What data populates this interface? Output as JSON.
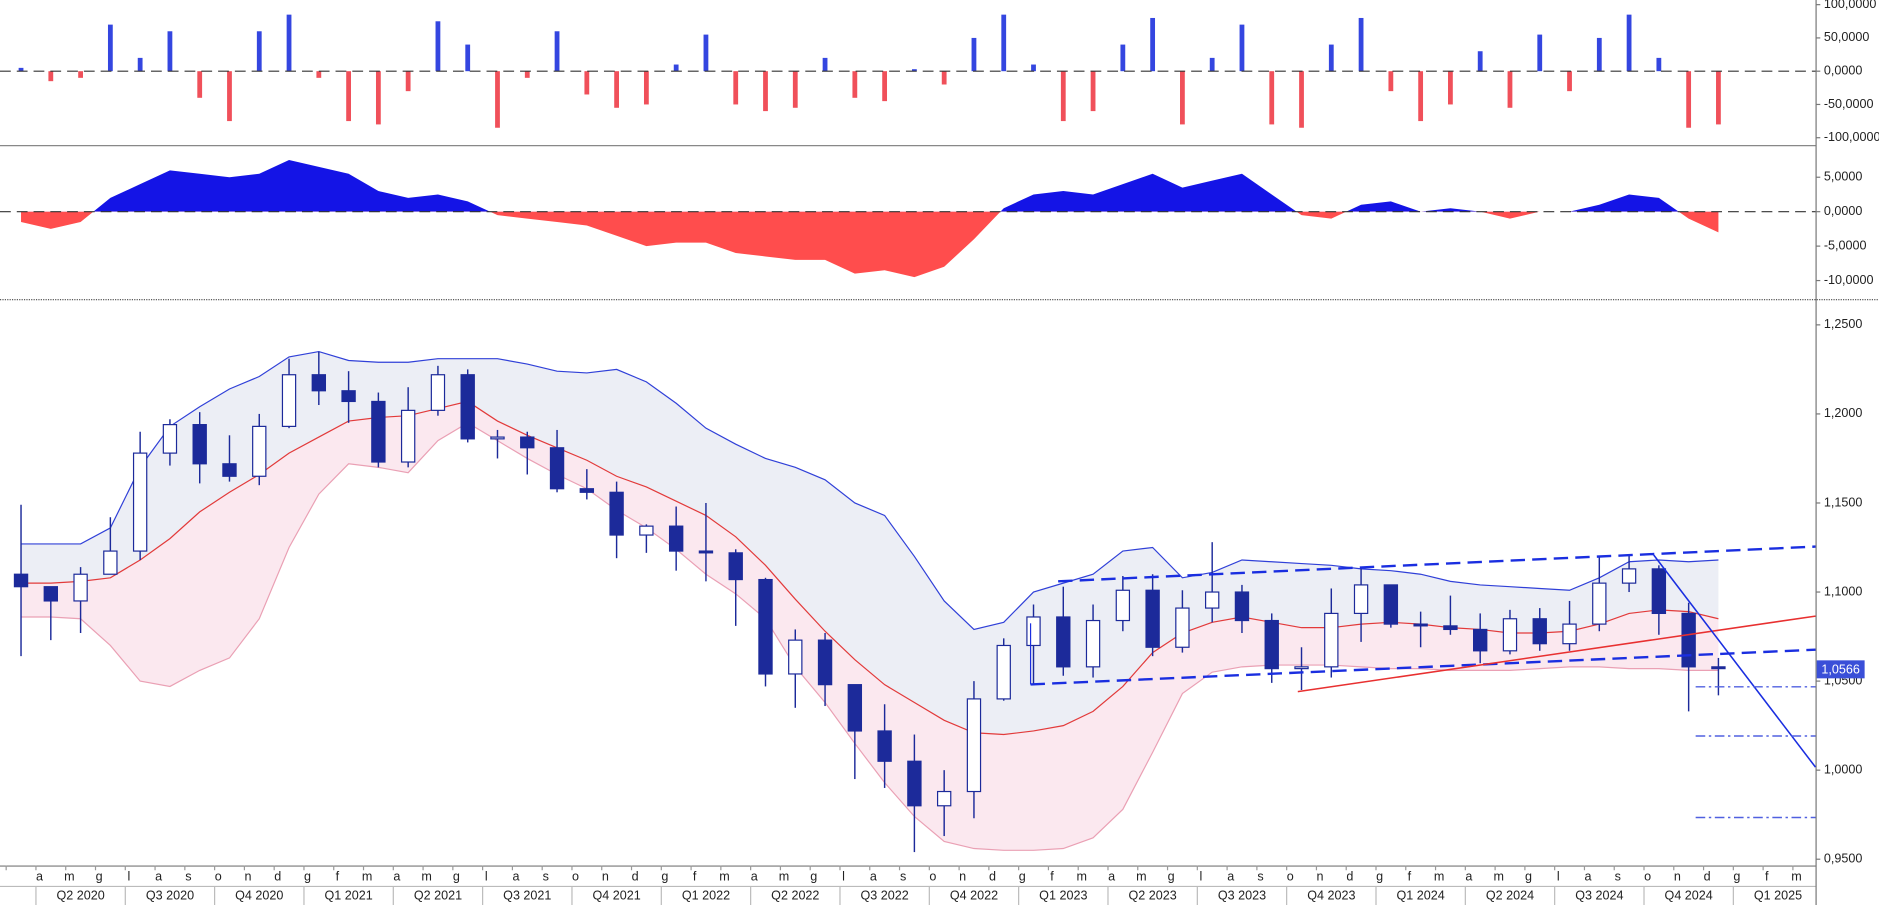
{
  "chart_data": [
    {
      "type": "histogram",
      "values": [
        5,
        -15,
        -10,
        70,
        20,
        60,
        -40,
        -75,
        60,
        85,
        -10,
        -75,
        -80,
        -30,
        75,
        40,
        -85,
        -10,
        60,
        -35,
        -55,
        -50,
        10,
        55,
        -50,
        -60,
        -55,
        20,
        -40,
        -45,
        3,
        -20,
        50,
        85,
        10,
        -75,
        -60,
        40,
        80,
        -80,
        20,
        70,
        -80,
        -85,
        40,
        80,
        -30,
        -75,
        -50,
        30,
        -55,
        55,
        -30,
        50,
        85,
        20,
        -85,
        -80,
        null,
        null,
        null
      ],
      "colors": {
        "positive": "#3446e0",
        "negative": "#f0505a"
      },
      "ylim": [
        -111,
        107
      ],
      "yticks": [
        {
          "value": 100,
          "label": "100,0000"
        },
        {
          "value": 50,
          "label": "50,0000"
        },
        {
          "value": 0,
          "label": "0,0000"
        },
        {
          "value": -50,
          "label": "-50,0000"
        },
        {
          "value": -100,
          "label": "-100,0000"
        }
      ],
      "zero_line": true
    },
    {
      "type": "area",
      "values": [
        -1.5,
        -2.5,
        -1.5,
        2,
        4,
        6,
        5.5,
        5,
        5.5,
        7.5,
        6.5,
        5.5,
        3,
        2,
        2.5,
        1.5,
        -0.5,
        -1,
        -1.5,
        -2,
        -3.5,
        -5,
        -4.5,
        -4.5,
        -6,
        -6.5,
        -7,
        -7,
        -9,
        -8.5,
        -9.5,
        -8,
        -4,
        0.5,
        2.5,
        3,
        2.5,
        4,
        5.5,
        3.5,
        4.5,
        5.5,
        2.5,
        -0.5,
        -1,
        1,
        1.5,
        0,
        0.5,
        0,
        -1,
        0,
        0,
        1,
        2.5,
        2,
        -1,
        -3,
        null,
        null,
        null
      ],
      "colors": {
        "positive": "#1414e6",
        "negative": "#ff4d4d"
      },
      "ylim": [
        -12.6,
        9.5
      ],
      "yticks": [
        {
          "value": 5,
          "label": "5,0000"
        },
        {
          "value": 0,
          "label": "0,0000"
        },
        {
          "value": -5,
          "label": "-5,0000"
        },
        {
          "value": -10,
          "label": "-10,0000"
        }
      ],
      "zero_line": true
    },
    {
      "type": "candlestick",
      "categories": [
        null,
        "a",
        "m",
        "g",
        "l",
        "a",
        "s",
        "o",
        "n",
        "d",
        "g",
        "f",
        "m",
        "a",
        "m",
        "g",
        "l",
        "a",
        "s",
        "o",
        "n",
        "d",
        "g",
        "f",
        "m",
        "a",
        "m",
        "g",
        "l",
        "a",
        "s",
        "o",
        "n",
        "d",
        "g",
        "f",
        "m",
        "a",
        "m",
        "g",
        "l",
        "a",
        "s",
        "o",
        "n",
        "d",
        "g",
        "f",
        "m",
        "a",
        "m",
        "g",
        "l",
        "a",
        "s",
        "o",
        "n",
        "d",
        "g",
        "f",
        "m"
      ],
      "quarters": [
        "Q2 2020",
        "Q3 2020",
        "Q4 2020",
        "Q1 2021",
        "Q2 2021",
        "Q3 2021",
        "Q4 2021",
        "Q1 2022",
        "Q2 2022",
        "Q3 2022",
        "Q4 2022",
        "Q1 2023",
        "Q2 2023",
        "Q3 2023",
        "Q4 2023",
        "Q1 2024",
        "Q2 2024",
        "Q3 2024",
        "Q4 2024",
        "Q1 2025"
      ],
      "open": [
        1.11,
        1.103,
        1.095,
        1.11,
        1.123,
        1.178,
        1.194,
        1.172,
        1.165,
        1.193,
        1.222,
        1.213,
        1.207,
        1.173,
        1.202,
        1.222,
        1.186,
        1.187,
        1.181,
        1.158,
        1.156,
        1.132,
        1.137,
        1.123,
        1.122,
        1.107,
        1.054,
        1.073,
        1.048,
        1.022,
        1.005,
        0.98,
        0.988,
        1.04,
        1.07,
        1.086,
        1.058,
        1.084,
        1.101,
        1.069,
        1.091,
        1.1,
        1.084,
        1.057,
        1.058,
        1.088,
        1.104,
        1.082,
        1.081,
        1.079,
        1.067,
        1.085,
        1.071,
        1.082,
        1.105,
        1.113,
        1.088,
        1.058,
        null,
        null,
        null
      ],
      "high": [
        1.149,
        1.102,
        1.114,
        1.142,
        1.19,
        1.197,
        1.201,
        1.188,
        1.2,
        1.231,
        1.235,
        1.224,
        1.212,
        1.215,
        1.227,
        1.225,
        1.191,
        1.19,
        1.191,
        1.169,
        1.162,
        1.138,
        1.148,
        1.15,
        1.124,
        1.108,
        1.079,
        1.077,
        1.048,
        1.037,
        1.02,
        1.0,
        1.05,
        1.074,
        1.093,
        1.103,
        1.093,
        1.109,
        1.11,
        1.101,
        1.128,
        1.104,
        1.088,
        1.069,
        1.102,
        1.114,
        1.104,
        1.089,
        1.098,
        1.088,
        1.09,
        1.091,
        1.095,
        1.12,
        1.121,
        1.115,
        1.094,
        1.063,
        null,
        null,
        null
      ],
      "low": [
        1.064,
        1.073,
        1.077,
        1.11,
        1.118,
        1.171,
        1.161,
        1.162,
        1.16,
        1.192,
        1.205,
        1.195,
        1.17,
        1.17,
        1.199,
        1.184,
        1.175,
        1.166,
        1.156,
        1.152,
        1.119,
        1.122,
        1.112,
        1.106,
        1.081,
        1.047,
        1.035,
        1.036,
        0.995,
        0.99,
        0.954,
        0.963,
        0.973,
        1.039,
        1.048,
        1.053,
        1.052,
        1.078,
        1.064,
        1.066,
        1.083,
        1.077,
        1.049,
        1.045,
        1.052,
        1.072,
        1.08,
        1.069,
        1.076,
        1.06,
        1.065,
        1.067,
        1.067,
        1.078,
        1.1,
        1.076,
        1.033,
        1.042,
        null,
        null,
        null
      ],
      "close": [
        1.103,
        1.095,
        1.11,
        1.123,
        1.178,
        1.194,
        1.172,
        1.165,
        1.193,
        1.222,
        1.213,
        1.207,
        1.173,
        1.202,
        1.222,
        1.186,
        1.187,
        1.181,
        1.158,
        1.156,
        1.132,
        1.137,
        1.123,
        1.122,
        1.107,
        1.054,
        1.073,
        1.048,
        1.022,
        1.005,
        0.98,
        0.988,
        1.04,
        1.07,
        1.086,
        1.058,
        1.084,
        1.101,
        1.069,
        1.091,
        1.1,
        1.084,
        1.057,
        1.058,
        1.088,
        1.104,
        1.082,
        1.081,
        1.079,
        1.067,
        1.085,
        1.071,
        1.082,
        1.105,
        1.113,
        1.088,
        1.058,
        1.057,
        null,
        null,
        null
      ],
      "bands": {
        "upper": [
          1.127,
          1.127,
          1.127,
          1.136,
          1.17,
          1.193,
          1.204,
          1.214,
          1.221,
          1.232,
          1.235,
          1.23,
          1.229,
          1.229,
          1.231,
          1.231,
          1.231,
          1.228,
          1.224,
          1.223,
          1.225,
          1.218,
          1.206,
          1.192,
          1.183,
          1.175,
          1.17,
          1.163,
          1.15,
          1.143,
          1.12,
          1.095,
          1.079,
          1.083,
          1.1,
          1.105,
          1.11,
          1.123,
          1.125,
          1.108,
          1.111,
          1.118,
          1.117,
          1.116,
          1.115,
          1.113,
          1.112,
          1.11,
          1.106,
          1.104,
          1.103,
          1.102,
          1.101,
          1.108,
          1.117,
          1.118,
          1.117,
          1.118,
          null,
          null,
          null
        ],
        "middle": [
          1.105,
          1.105,
          1.106,
          1.108,
          1.118,
          1.13,
          1.145,
          1.156,
          1.166,
          1.178,
          1.187,
          1.196,
          1.198,
          1.199,
          1.203,
          1.207,
          1.196,
          1.188,
          1.181,
          1.174,
          1.165,
          1.159,
          1.151,
          1.143,
          1.131,
          1.115,
          1.096,
          1.078,
          1.062,
          1.048,
          1.038,
          1.028,
          1.021,
          1.02,
          1.022,
          1.025,
          1.033,
          1.047,
          1.066,
          1.077,
          1.083,
          1.086,
          1.083,
          1.08,
          1.08,
          1.082,
          1.083,
          1.082,
          1.08,
          1.079,
          1.077,
          1.077,
          1.078,
          1.082,
          1.088,
          1.09,
          1.089,
          1.085,
          null,
          null,
          null
        ],
        "lower": [
          1.086,
          1.086,
          1.085,
          1.07,
          1.05,
          1.047,
          1.056,
          1.063,
          1.085,
          1.125,
          1.155,
          1.172,
          1.17,
          1.167,
          1.185,
          1.195,
          1.185,
          1.175,
          1.166,
          1.158,
          1.146,
          1.136,
          1.124,
          1.11,
          1.099,
          1.085,
          1.058,
          1.038,
          1.015,
          0.993,
          0.974,
          0.96,
          0.956,
          0.955,
          0.955,
          0.956,
          0.962,
          0.978,
          1.01,
          1.043,
          1.055,
          1.058,
          1.059,
          1.059,
          1.059,
          1.058,
          1.057,
          1.057,
          1.056,
          1.056,
          1.056,
          1.057,
          1.058,
          1.058,
          1.057,
          1.057,
          1.056,
          1.056,
          null,
          null,
          null
        ]
      },
      "colors": {
        "up": "#ffffff",
        "down": "#1c2a9a",
        "outline": "#1c2a9a",
        "upper": "#3040d8",
        "middle": "#e23a3a",
        "lower": "#eaa0b4",
        "upper_fill": "#eceef5",
        "lower_fill": "#fbe8ef",
        "last_price": "#3a4fd8"
      },
      "ylim": [
        0.9465,
        1.2628
      ],
      "yticks": [
        {
          "value": 1.25,
          "label": "1,2500"
        },
        {
          "value": 1.2,
          "label": "1,2000"
        },
        {
          "value": 1.15,
          "label": "1,1500"
        },
        {
          "value": 1.1,
          "label": "1,1000"
        },
        {
          "value": 1.05,
          "label": "1,0500"
        },
        {
          "value": 1.0,
          "label": "1,0000"
        },
        {
          "value": 0.95,
          "label": "0,9500"
        }
      ],
      "last_price": {
        "value": 1.0566,
        "label": "1,0566"
      }
    }
  ]
}
